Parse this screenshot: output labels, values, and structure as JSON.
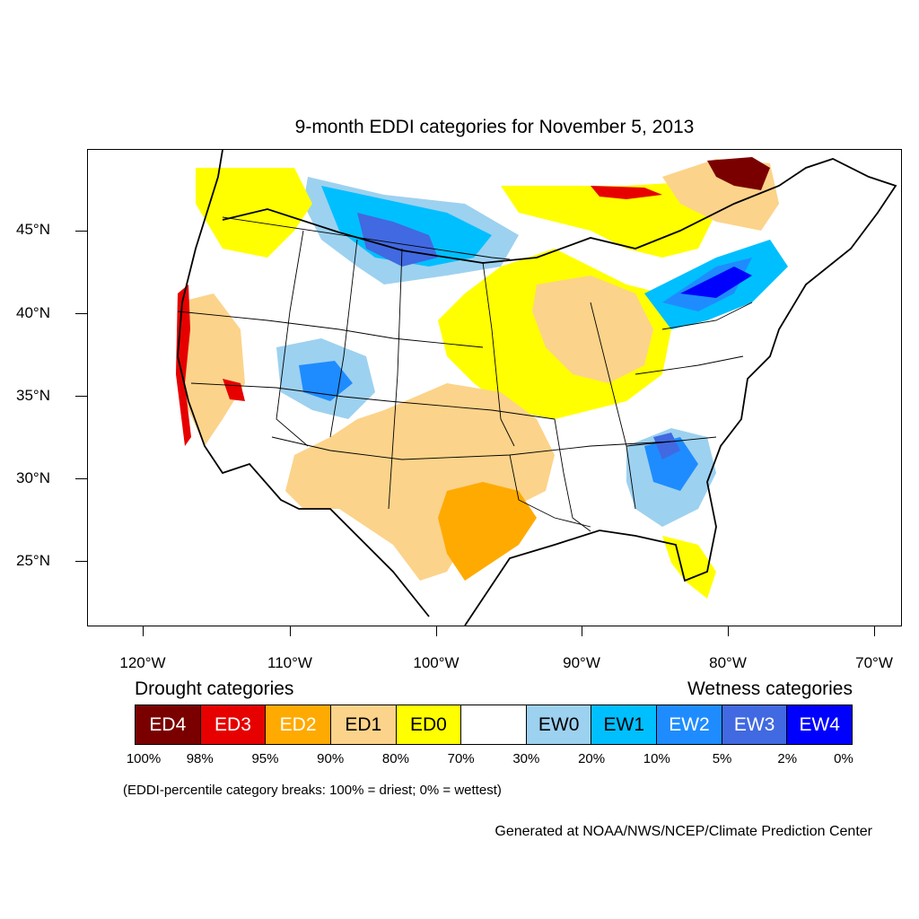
{
  "title": "9-month EDDI categories for November 5, 2013",
  "lat_labels": [
    "45°N",
    "40°N",
    "35°N",
    "30°N",
    "25°N"
  ],
  "lon_labels": [
    "120°W",
    "110°W",
    "100°W",
    "90°W",
    "80°W",
    "70°W"
  ],
  "legend": {
    "drought_heading": "Drought categories",
    "wetness_heading": "Wetness categories",
    "categories": [
      {
        "label": "ED4",
        "color": "#7a0000",
        "text_color": "#ffffff"
      },
      {
        "label": "ED3",
        "color": "#e60000",
        "text_color": "#ffffff"
      },
      {
        "label": "ED2",
        "color": "#ffaa00",
        "text_color": "#ffffff"
      },
      {
        "label": "ED1",
        "color": "#fcd38a",
        "text_color": "#000000"
      },
      {
        "label": "ED0",
        "color": "#ffff00",
        "text_color": "#000000"
      },
      {
        "label": "",
        "color": "#ffffff",
        "text_color": "#000000"
      },
      {
        "label": "EW0",
        "color": "#9dd1f0",
        "text_color": "#000000"
      },
      {
        "label": "EW1",
        "color": "#00bfff",
        "text_color": "#000000"
      },
      {
        "label": "EW2",
        "color": "#1e8cff",
        "text_color": "#ffffff"
      },
      {
        "label": "EW3",
        "color": "#4169e1",
        "text_color": "#ffffff"
      },
      {
        "label": "EW4",
        "color": "#0000ff",
        "text_color": "#ffffff"
      }
    ],
    "breaks": [
      "100%",
      "98%",
      "95%",
      "90%",
      "80%",
      "70%",
      "30%",
      "20%",
      "10%",
      "5%",
      "2%",
      "0%"
    ]
  },
  "note": "(EDDI-percentile category breaks: 100% = driest; 0% = wettest)",
  "credit": "Generated at NOAA/NWS/NCEP/Climate Prediction Center"
}
